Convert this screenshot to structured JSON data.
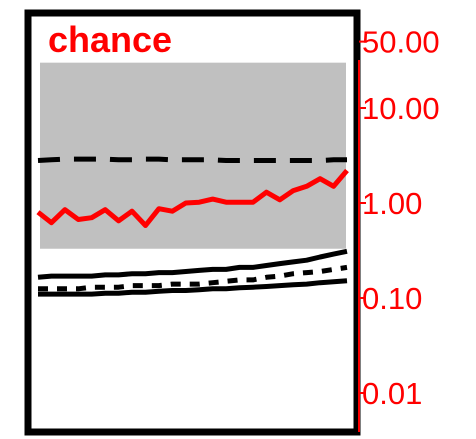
{
  "chart_data": {
    "type": "line",
    "title": "chance",
    "y_scale": "log",
    "ylim": [
      0.01,
      100
    ],
    "y_ticks": [
      50,
      10,
      1,
      0.1,
      0.01
    ],
    "y_tick_labels": [
      "50.00",
      "10.00",
      "1.00",
      "0.10",
      "0.01"
    ],
    "y_axis_side": "right",
    "x": [
      1,
      2,
      3,
      4,
      5,
      6,
      7,
      8,
      9,
      10,
      11,
      12,
      13,
      14,
      15,
      16,
      17,
      18,
      19,
      20,
      21,
      22,
      23,
      24
    ],
    "band": {
      "lower": 0.33,
      "upper": 30,
      "color": "#c0c0c0"
    },
    "series": [
      {
        "style": "dashed",
        "color": "#000000",
        "values": [
          2.8,
          2.85,
          2.9,
          2.9,
          2.9,
          2.9,
          2.85,
          2.85,
          2.9,
          2.9,
          2.85,
          2.85,
          2.85,
          2.85,
          2.8,
          2.8,
          2.8,
          2.8,
          2.8,
          2.8,
          2.8,
          2.8,
          2.85,
          2.85
        ]
      },
      {
        "style": "solid",
        "color": "#ff0000",
        "values": [
          0.8,
          0.62,
          0.85,
          0.67,
          0.7,
          0.85,
          0.65,
          0.82,
          0.58,
          0.87,
          0.82,
          1.0,
          1.02,
          1.1,
          1.02,
          1.02,
          1.02,
          1.3,
          1.08,
          1.35,
          1.5,
          1.8,
          1.5,
          2.2
        ]
      },
      {
        "style": "solid",
        "color": "#000000",
        "values": [
          0.165,
          0.17,
          0.17,
          0.17,
          0.17,
          0.175,
          0.175,
          0.18,
          0.18,
          0.185,
          0.185,
          0.19,
          0.195,
          0.2,
          0.2,
          0.21,
          0.21,
          0.22,
          0.23,
          0.24,
          0.25,
          0.27,
          0.29,
          0.31
        ]
      },
      {
        "style": "dotted",
        "color": "#000000",
        "values": [
          0.125,
          0.125,
          0.125,
          0.125,
          0.13,
          0.13,
          0.13,
          0.135,
          0.135,
          0.135,
          0.14,
          0.14,
          0.14,
          0.145,
          0.15,
          0.155,
          0.155,
          0.165,
          0.17,
          0.18,
          0.185,
          0.19,
          0.2,
          0.21
        ]
      },
      {
        "style": "solid",
        "color": "#000000",
        "values": [
          0.11,
          0.11,
          0.11,
          0.11,
          0.11,
          0.112,
          0.112,
          0.115,
          0.115,
          0.118,
          0.12,
          0.12,
          0.122,
          0.125,
          0.125,
          0.128,
          0.13,
          0.132,
          0.135,
          0.138,
          0.14,
          0.145,
          0.148,
          0.152
        ]
      }
    ],
    "colors": {
      "axis_right": "#ff0000",
      "tick_label": "#ff0000",
      "title": "#ff0000",
      "frame": "#000000"
    }
  }
}
